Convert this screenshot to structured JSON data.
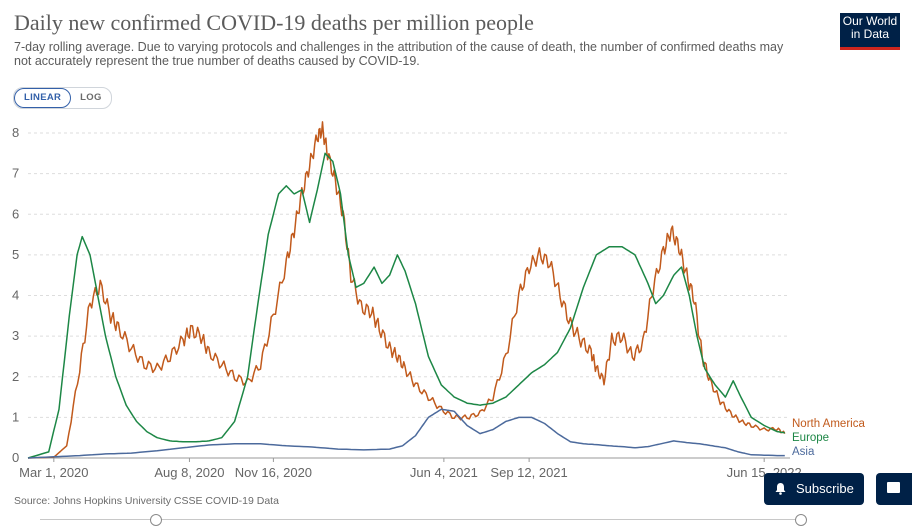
{
  "header": {
    "title": "Daily new confirmed COVID-19 deaths per million people",
    "subtitle": "7-day rolling average. Due to varying protocols and challenges in the attribution of the cause of death, the number of confirmed deaths may not accurately represent the true number of deaths caused by COVID-19.",
    "logo_line1": "Our World",
    "logo_line2": "in Data"
  },
  "scale_toggle": {
    "linear": "LINEAR",
    "log": "LOG",
    "active": "linear"
  },
  "footer": {
    "source": "Source: Johns Hopkins University CSSE COVID-19 Data"
  },
  "buttons": {
    "subscribe": "Subscribe"
  },
  "colors": {
    "north_america": "#c15a1c",
    "europe": "#1d8746",
    "asia": "#4c6a9c",
    "grid": "#dddddd",
    "axis_text": "#666666",
    "brand": "#002147"
  },
  "chart_data": {
    "type": "line",
    "title": "Daily new confirmed COVID-19 deaths per million people",
    "xlabel": "",
    "ylabel": "",
    "ylim": [
      0,
      8
    ],
    "y_ticks": [
      0,
      1,
      2,
      3,
      4,
      5,
      6,
      7,
      8
    ],
    "x_ticks": [
      {
        "label": "Mar 1, 2020",
        "month": 1.0
      },
      {
        "label": "Aug 8, 2020",
        "month": 6.25
      },
      {
        "label": "Nov 16, 2020",
        "month": 9.5
      },
      {
        "label": "Jun 4, 2021",
        "month": 16.1
      },
      {
        "label": "Sep 12, 2021",
        "month": 19.4
      },
      {
        "label": "Jun 15, 2022",
        "month": 28.5
      }
    ],
    "x_range_month": [
      0.0,
      29.5
    ],
    "x_units": "months since Feb 1, 2020",
    "series": [
      {
        "name": "North America",
        "color": "#c15a1c",
        "points": [
          [
            0.0,
            0
          ],
          [
            1.0,
            0.02
          ],
          [
            1.5,
            0.3
          ],
          [
            2.0,
            2.2
          ],
          [
            2.4,
            3.8
          ],
          [
            2.8,
            4.25
          ],
          [
            3.2,
            3.5
          ],
          [
            3.5,
            3.2
          ],
          [
            4.0,
            2.7
          ],
          [
            4.5,
            2.3
          ],
          [
            5.0,
            2.2
          ],
          [
            5.5,
            2.5
          ],
          [
            6.0,
            2.9
          ],
          [
            6.3,
            3.15
          ],
          [
            6.7,
            3.0
          ],
          [
            7.0,
            2.6
          ],
          [
            7.5,
            2.3
          ],
          [
            8.0,
            2.0
          ],
          [
            8.5,
            1.85
          ],
          [
            9.0,
            2.3
          ],
          [
            9.5,
            3.5
          ],
          [
            10.0,
            4.8
          ],
          [
            10.3,
            5.6
          ],
          [
            10.6,
            6.5
          ],
          [
            10.9,
            7.2
          ],
          [
            11.2,
            7.9
          ],
          [
            11.4,
            8.1
          ],
          [
            11.6,
            7.5
          ],
          [
            11.9,
            6.8
          ],
          [
            12.2,
            6.0
          ],
          [
            12.5,
            4.5
          ],
          [
            12.9,
            3.7
          ],
          [
            13.3,
            3.6
          ],
          [
            13.6,
            3.2
          ],
          [
            14.0,
            2.7
          ],
          [
            14.3,
            2.5
          ],
          [
            14.6,
            2.2
          ],
          [
            15.0,
            1.8
          ],
          [
            15.5,
            1.5
          ],
          [
            16.0,
            1.2
          ],
          [
            16.5,
            1.0
          ],
          [
            17.0,
            1.0
          ],
          [
            17.5,
            1.1
          ],
          [
            18.0,
            1.5
          ],
          [
            18.5,
            2.5
          ],
          [
            19.0,
            4.0
          ],
          [
            19.4,
            4.7
          ],
          [
            19.8,
            5.0
          ],
          [
            20.2,
            4.8
          ],
          [
            20.6,
            4.0
          ],
          [
            21.0,
            3.3
          ],
          [
            21.4,
            2.9
          ],
          [
            21.8,
            2.6
          ],
          [
            22.0,
            2.2
          ],
          [
            22.3,
            1.9
          ],
          [
            22.6,
            2.9
          ],
          [
            23.0,
            3.0
          ],
          [
            23.4,
            2.5
          ],
          [
            23.8,
            2.8
          ],
          [
            24.2,
            4.2
          ],
          [
            24.6,
            5.1
          ],
          [
            24.9,
            5.6
          ],
          [
            25.2,
            5.2
          ],
          [
            25.5,
            4.5
          ],
          [
            25.8,
            3.9
          ],
          [
            26.1,
            2.5
          ],
          [
            26.4,
            1.9
          ],
          [
            26.8,
            1.4
          ],
          [
            27.2,
            1.1
          ],
          [
            27.6,
            0.9
          ],
          [
            28.0,
            0.8
          ],
          [
            28.5,
            0.7
          ],
          [
            29.0,
            0.72
          ],
          [
            29.3,
            0.6
          ]
        ]
      },
      {
        "name": "Europe",
        "color": "#1d8746",
        "points": [
          [
            0.0,
            0
          ],
          [
            0.8,
            0.15
          ],
          [
            1.2,
            1.2
          ],
          [
            1.6,
            3.5
          ],
          [
            1.9,
            5.0
          ],
          [
            2.1,
            5.45
          ],
          [
            2.4,
            5.0
          ],
          [
            2.7,
            4.0
          ],
          [
            3.0,
            3.0
          ],
          [
            3.4,
            2.0
          ],
          [
            3.8,
            1.3
          ],
          [
            4.2,
            0.9
          ],
          [
            4.6,
            0.65
          ],
          [
            5.0,
            0.5
          ],
          [
            5.5,
            0.42
          ],
          [
            6.0,
            0.4
          ],
          [
            6.5,
            0.4
          ],
          [
            7.0,
            0.42
          ],
          [
            7.5,
            0.5
          ],
          [
            8.0,
            0.9
          ],
          [
            8.5,
            2.0
          ],
          [
            8.9,
            3.8
          ],
          [
            9.3,
            5.5
          ],
          [
            9.7,
            6.5
          ],
          [
            10.0,
            6.7
          ],
          [
            10.3,
            6.5
          ],
          [
            10.6,
            6.6
          ],
          [
            10.9,
            5.8
          ],
          [
            11.2,
            6.6
          ],
          [
            11.5,
            7.5
          ],
          [
            11.8,
            7.3
          ],
          [
            12.1,
            6.5
          ],
          [
            12.4,
            5.0
          ],
          [
            12.7,
            4.2
          ],
          [
            13.0,
            4.3
          ],
          [
            13.4,
            4.7
          ],
          [
            13.7,
            4.3
          ],
          [
            14.0,
            4.5
          ],
          [
            14.3,
            5.0
          ],
          [
            14.6,
            4.6
          ],
          [
            15.0,
            3.8
          ],
          [
            15.5,
            2.5
          ],
          [
            16.0,
            1.8
          ],
          [
            16.5,
            1.5
          ],
          [
            17.0,
            1.35
          ],
          [
            17.5,
            1.3
          ],
          [
            18.0,
            1.35
          ],
          [
            18.5,
            1.5
          ],
          [
            19.0,
            1.8
          ],
          [
            19.5,
            2.1
          ],
          [
            20.0,
            2.3
          ],
          [
            20.5,
            2.6
          ],
          [
            21.0,
            3.2
          ],
          [
            21.5,
            4.2
          ],
          [
            22.0,
            5.0
          ],
          [
            22.5,
            5.2
          ],
          [
            23.0,
            5.2
          ],
          [
            23.5,
            5.0
          ],
          [
            24.0,
            4.3
          ],
          [
            24.3,
            3.8
          ],
          [
            24.6,
            4.0
          ],
          [
            25.0,
            4.5
          ],
          [
            25.3,
            4.7
          ],
          [
            25.6,
            4.0
          ],
          [
            25.9,
            3.0
          ],
          [
            26.2,
            2.2
          ],
          [
            26.6,
            1.8
          ],
          [
            27.0,
            1.5
          ],
          [
            27.3,
            1.9
          ],
          [
            27.6,
            1.5
          ],
          [
            28.0,
            1.0
          ],
          [
            28.5,
            0.8
          ],
          [
            29.0,
            0.65
          ],
          [
            29.3,
            0.62
          ]
        ]
      },
      {
        "name": "Asia",
        "color": "#4c6a9c",
        "points": [
          [
            0.0,
            0
          ],
          [
            1.0,
            0.03
          ],
          [
            2.0,
            0.06
          ],
          [
            3.0,
            0.1
          ],
          [
            4.0,
            0.12
          ],
          [
            5.0,
            0.18
          ],
          [
            6.0,
            0.25
          ],
          [
            7.0,
            0.32
          ],
          [
            8.0,
            0.35
          ],
          [
            9.0,
            0.35
          ],
          [
            10.0,
            0.3
          ],
          [
            11.0,
            0.27
          ],
          [
            12.0,
            0.22
          ],
          [
            13.0,
            0.2
          ],
          [
            14.0,
            0.22
          ],
          [
            14.5,
            0.3
          ],
          [
            15.0,
            0.55
          ],
          [
            15.5,
            1.0
          ],
          [
            16.0,
            1.2
          ],
          [
            16.5,
            1.15
          ],
          [
            17.0,
            0.8
          ],
          [
            17.5,
            0.6
          ],
          [
            18.0,
            0.7
          ],
          [
            18.5,
            0.9
          ],
          [
            19.0,
            1.0
          ],
          [
            19.5,
            1.0
          ],
          [
            20.0,
            0.85
          ],
          [
            20.5,
            0.6
          ],
          [
            21.0,
            0.4
          ],
          [
            21.5,
            0.35
          ],
          [
            22.0,
            0.33
          ],
          [
            22.5,
            0.3
          ],
          [
            23.0,
            0.28
          ],
          [
            23.5,
            0.25
          ],
          [
            24.0,
            0.28
          ],
          [
            24.5,
            0.35
          ],
          [
            25.0,
            0.42
          ],
          [
            25.5,
            0.38
          ],
          [
            26.0,
            0.35
          ],
          [
            26.5,
            0.3
          ],
          [
            27.0,
            0.25
          ],
          [
            27.5,
            0.15
          ],
          [
            28.0,
            0.08
          ],
          [
            29.0,
            0.06
          ],
          [
            29.3,
            0.06
          ]
        ]
      }
    ]
  }
}
